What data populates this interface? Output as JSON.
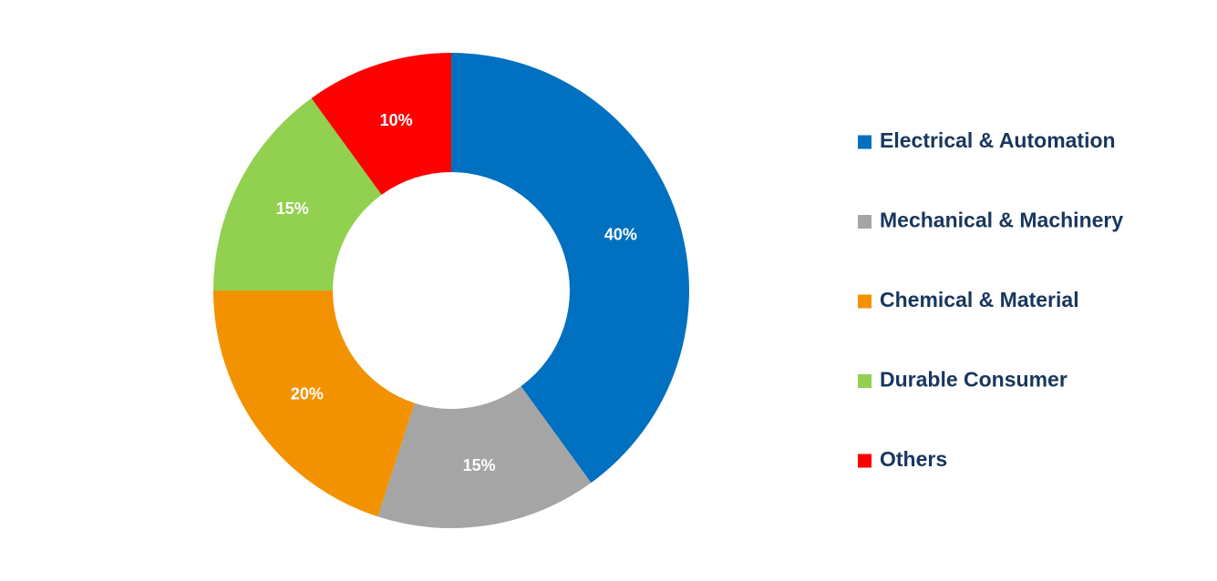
{
  "chart_data": {
    "type": "donut",
    "categories": [
      "Electrical & Automation",
      "Mechanical & Machinery",
      "Chemical & Material",
      "Durable Consumer",
      "Others"
    ],
    "series": [
      {
        "values": [
          40,
          15,
          20,
          15,
          10
        ],
        "value_labels": [
          "40%",
          "15%",
          "20%",
          "15%",
          "10%"
        ],
        "colors": [
          "#0070c0",
          "#a5a5a5",
          "#f39200",
          "#92d050",
          "#ff0000"
        ]
      }
    ],
    "legend": "right"
  }
}
